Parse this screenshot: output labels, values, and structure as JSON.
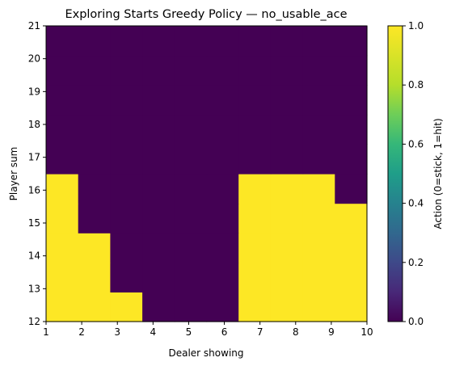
{
  "chart_data": {
    "type": "heatmap",
    "title": "Exploring Starts Greedy Policy — no_usable_ace",
    "xlabel": "Dealer showing",
    "ylabel": "Player sum",
    "xlim": [
      1,
      10
    ],
    "ylim": [
      12,
      21
    ],
    "x_ticks": [
      "1",
      "2",
      "3",
      "4",
      "5",
      "6",
      "7",
      "8",
      "9",
      "10"
    ],
    "y_ticks": [
      "12",
      "13",
      "14",
      "15",
      "16",
      "17",
      "18",
      "19",
      "20",
      "21"
    ],
    "columns": [
      "1",
      "2",
      "3",
      "4",
      "5",
      "6",
      "7",
      "8",
      "9",
      "10"
    ],
    "rows_bottom_to_top": [
      "12",
      "13",
      "14",
      "15",
      "16",
      "17",
      "18",
      "19",
      "20",
      "21"
    ],
    "values": [
      [
        1,
        1,
        1,
        0,
        0,
        0,
        1,
        1,
        1,
        1
      ],
      [
        1,
        1,
        0,
        0,
        0,
        0,
        1,
        1,
        1,
        1
      ],
      [
        1,
        1,
        0,
        0,
        0,
        0,
        1,
        1,
        1,
        1
      ],
      [
        1,
        0,
        0,
        0,
        0,
        0,
        1,
        1,
        1,
        1
      ],
      [
        1,
        0,
        0,
        0,
        0,
        0,
        1,
        1,
        1,
        0
      ],
      [
        0,
        0,
        0,
        0,
        0,
        0,
        0,
        0,
        0,
        0
      ],
      [
        0,
        0,
        0,
        0,
        0,
        0,
        0,
        0,
        0,
        0
      ],
      [
        0,
        0,
        0,
        0,
        0,
        0,
        0,
        0,
        0,
        0
      ],
      [
        0,
        0,
        0,
        0,
        0,
        0,
        0,
        0,
        0,
        0
      ],
      [
        0,
        0,
        0,
        0,
        0,
        0,
        0,
        0,
        0,
        0
      ]
    ],
    "colorbar": {
      "label": "Action (0=stick, 1=hit)",
      "min": 0,
      "max": 1,
      "ticks": [
        "0.0",
        "0.2",
        "0.4",
        "0.6",
        "0.8",
        "1.0"
      ],
      "colormap": "viridis"
    },
    "colors": {
      "low": "#440154",
      "high": "#fde725"
    }
  }
}
